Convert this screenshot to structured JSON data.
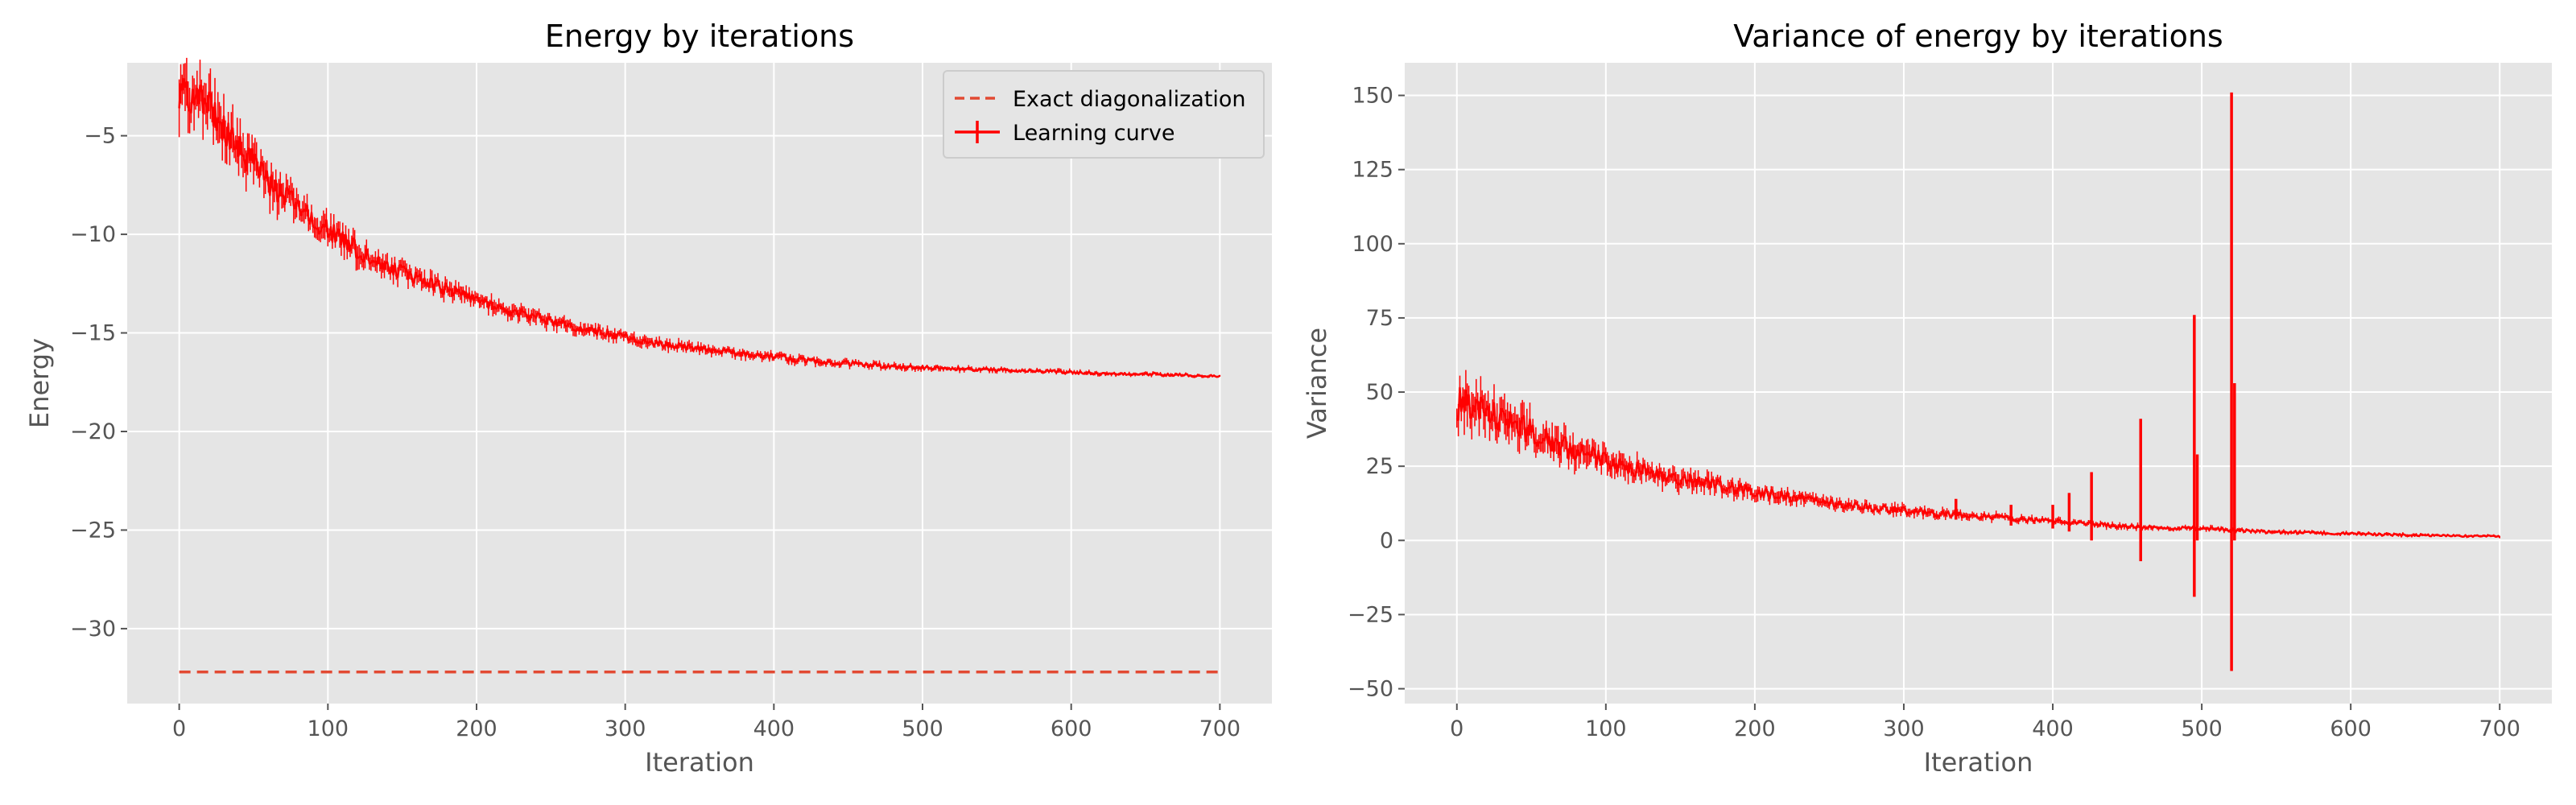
{
  "chart_data": [
    {
      "type": "line",
      "title": "Energy by iterations",
      "xlabel": "Iteration",
      "ylabel": "Energy",
      "xlim": [
        -35,
        735
      ],
      "ylim": [
        -33.8,
        -1.3
      ],
      "xticks": [
        0,
        100,
        200,
        300,
        400,
        500,
        600,
        700
      ],
      "yticks": [
        -30,
        -25,
        -20,
        -15,
        -10,
        -5
      ],
      "grid": true,
      "legend": "top-right",
      "series": [
        {
          "name": "Exact diagonalization",
          "style": "dashed",
          "color": "#e24a33",
          "x": [
            0,
            700
          ],
          "y": [
            -32.2,
            -32.2
          ]
        },
        {
          "name": "Learning curve",
          "style": "solid",
          "color": "#ff0000",
          "x": [
            0,
            5,
            10,
            20,
            30,
            40,
            50,
            60,
            70,
            80,
            90,
            100,
            120,
            140,
            160,
            180,
            200,
            220,
            240,
            260,
            280,
            300,
            320,
            340,
            360,
            380,
            400,
            420,
            440,
            460,
            480,
            500,
            520,
            540,
            560,
            580,
            600,
            620,
            640,
            660,
            680,
            700
          ],
          "y": [
            -2.8,
            -2.7,
            -3.0,
            -3.6,
            -4.6,
            -5.6,
            -6.5,
            -7.3,
            -8.0,
            -8.7,
            -9.3,
            -9.8,
            -10.8,
            -11.6,
            -12.2,
            -12.8,
            -13.3,
            -13.8,
            -14.2,
            -14.6,
            -14.9,
            -15.2,
            -15.5,
            -15.7,
            -15.9,
            -16.1,
            -16.2,
            -16.4,
            -16.5,
            -16.6,
            -16.7,
            -16.75,
            -16.8,
            -16.85,
            -16.9,
            -16.95,
            -17.0,
            -17.05,
            -17.1,
            -17.1,
            -17.15,
            -17.2
          ],
          "noise": [
            1.0,
            1.0,
            0.95,
            0.9,
            0.85,
            0.8,
            0.75,
            0.7,
            0.65,
            0.6,
            0.55,
            0.5,
            0.45,
            0.4,
            0.35,
            0.32,
            0.3,
            0.28,
            0.26,
            0.24,
            0.22,
            0.2,
            0.19,
            0.18,
            0.17,
            0.16,
            0.15,
            0.14,
            0.13,
            0.12,
            0.11,
            0.1,
            0.1,
            0.09,
            0.09,
            0.08,
            0.08,
            0.07,
            0.07,
            0.07,
            0.06,
            0.06
          ]
        }
      ]
    },
    {
      "type": "line",
      "title": "Variance of energy by iterations",
      "xlabel": "Iteration",
      "ylabel": "Variance",
      "xlim": [
        -35,
        735
      ],
      "ylim": [
        -55,
        161
      ],
      "xticks": [
        0,
        100,
        200,
        300,
        400,
        500,
        600,
        700
      ],
      "yticks": [
        -50,
        -25,
        0,
        25,
        50,
        75,
        100,
        125,
        150
      ],
      "grid": true,
      "series": [
        {
          "color": "#ff0000",
          "x": [
            0,
            10,
            20,
            40,
            60,
            80,
            100,
            120,
            140,
            160,
            180,
            200,
            220,
            240,
            260,
            280,
            300,
            320,
            340,
            360,
            380,
            400,
            420,
            440,
            460,
            480,
            500,
            520,
            540,
            560,
            580,
            600,
            620,
            640,
            660,
            680,
            700
          ],
          "y": [
            46,
            45,
            43,
            39,
            34,
            30,
            27,
            24,
            22,
            20,
            18,
            16.5,
            15,
            13.5,
            12,
            11,
            10,
            9,
            8.5,
            8,
            7,
            6.5,
            6,
            5,
            4.5,
            4,
            4,
            3.5,
            3,
            2.8,
            2.5,
            2.3,
            2,
            1.8,
            1.6,
            1.5,
            1.4
          ],
          "noise": [
            6,
            6,
            5,
            4.5,
            4,
            3.5,
            3,
            2.7,
            2.5,
            2.2,
            2,
            1.8,
            1.6,
            1.5,
            1.4,
            1.3,
            1.2,
            1.1,
            1.0,
            0.9,
            0.8,
            0.8,
            0.7,
            0.7,
            0.6,
            0.6,
            0.6,
            0.5,
            0.5,
            0.5,
            0.4,
            0.4,
            0.4,
            0.4,
            0.3,
            0.3,
            0.3
          ],
          "spikes": [
            {
              "x": 335,
              "y": [
                7,
                14
              ]
            },
            {
              "x": 372,
              "y": [
                5,
                12
              ]
            },
            {
              "x": 400,
              "y": [
                4,
                12
              ]
            },
            {
              "x": 411,
              "y": [
                3,
                16
              ]
            },
            {
              "x": 426,
              "y": [
                0,
                23
              ]
            },
            {
              "x": 459,
              "y": [
                -7,
                41
              ]
            },
            {
              "x": 495,
              "y": [
                -19,
                76
              ]
            },
            {
              "x": 497,
              "y": [
                0,
                29
              ]
            },
            {
              "x": 520,
              "y": [
                -44,
                151
              ]
            },
            {
              "x": 522,
              "y": [
                0,
                53
              ]
            }
          ]
        }
      ]
    }
  ]
}
